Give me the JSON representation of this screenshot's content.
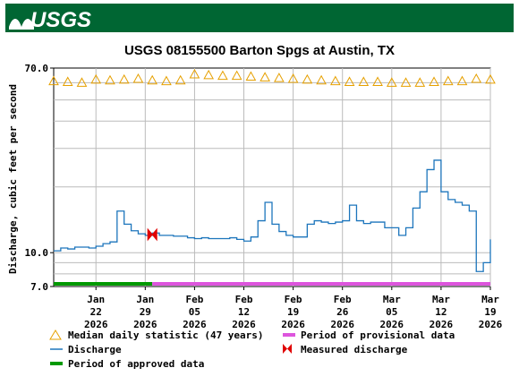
{
  "brand": {
    "logo_text": "USGS",
    "bar_color": "#006633"
  },
  "chart_data": {
    "type": "line",
    "title": "USGS 08155500 Barton Spgs at Austin, TX",
    "ylabel": "Discharge, cubic feet per second",
    "ylim": [
      7.0,
      70.0
    ],
    "y_scale": "log",
    "y_tick_labels": [
      "70.0",
      "10.0",
      "7.0"
    ],
    "x_tick_labels": [
      {
        "month": "Jan",
        "day": "22",
        "year": "2026"
      },
      {
        "month": "Jan",
        "day": "29",
        "year": "2026"
      },
      {
        "month": "Feb",
        "day": "05",
        "year": "2026"
      },
      {
        "month": "Feb",
        "day": "12",
        "year": "2026"
      },
      {
        "month": "Feb",
        "day": "19",
        "year": "2026"
      },
      {
        "month": "Feb",
        "day": "26",
        "year": "2026"
      },
      {
        "month": "Mar",
        "day": "05",
        "year": "2026"
      },
      {
        "month": "Mar",
        "day": "12",
        "year": "2026"
      },
      {
        "month": "Mar",
        "day": "19",
        "year": "2026"
      }
    ],
    "xlim": [
      "2026-01-16",
      "2026-03-19"
    ],
    "series": [
      {
        "name": "Discharge",
        "color": "#1c75bc",
        "points": [
          [
            "2026-01-16",
            10.2
          ],
          [
            "2026-01-17",
            10.5
          ],
          [
            "2026-01-18",
            10.4
          ],
          [
            "2026-01-19",
            10.6
          ],
          [
            "2026-01-20",
            10.6
          ],
          [
            "2026-01-21",
            10.5
          ],
          [
            "2026-01-22",
            10.7
          ],
          [
            "2026-01-23",
            11.0
          ],
          [
            "2026-01-24",
            11.2
          ],
          [
            "2026-01-25",
            15.5
          ],
          [
            "2026-01-26",
            13.5
          ],
          [
            "2026-01-27",
            12.6
          ],
          [
            "2026-01-28",
            12.2
          ],
          [
            "2026-01-29",
            12.0
          ],
          [
            "2026-01-30",
            12.3
          ],
          [
            "2026-01-31",
            12.0
          ],
          [
            "2026-02-01",
            12.0
          ],
          [
            "2026-02-02",
            11.9
          ],
          [
            "2026-02-03",
            11.9
          ],
          [
            "2026-02-04",
            11.7
          ],
          [
            "2026-02-05",
            11.6
          ],
          [
            "2026-02-06",
            11.7
          ],
          [
            "2026-02-07",
            11.6
          ],
          [
            "2026-02-08",
            11.6
          ],
          [
            "2026-02-09",
            11.6
          ],
          [
            "2026-02-10",
            11.7
          ],
          [
            "2026-02-11",
            11.5
          ],
          [
            "2026-02-12",
            11.3
          ],
          [
            "2026-02-13",
            11.8
          ],
          [
            "2026-02-14",
            14.0
          ],
          [
            "2026-02-15",
            17.0
          ],
          [
            "2026-02-16",
            13.5
          ],
          [
            "2026-02-17",
            12.5
          ],
          [
            "2026-02-18",
            12.0
          ],
          [
            "2026-02-19",
            11.8
          ],
          [
            "2026-02-20",
            11.8
          ],
          [
            "2026-02-21",
            13.5
          ],
          [
            "2026-02-22",
            14.0
          ],
          [
            "2026-02-23",
            13.8
          ],
          [
            "2026-02-24",
            13.6
          ],
          [
            "2026-02-25",
            13.8
          ],
          [
            "2026-02-26",
            14.0
          ],
          [
            "2026-02-27",
            16.5
          ],
          [
            "2026-02-28",
            14.0
          ],
          [
            "2026-03-01",
            13.6
          ],
          [
            "2026-03-02",
            13.8
          ],
          [
            "2026-03-03",
            13.8
          ],
          [
            "2026-03-04",
            13.0
          ],
          [
            "2026-03-05",
            13.0
          ],
          [
            "2026-03-06",
            12.0
          ],
          [
            "2026-03-07",
            13.0
          ],
          [
            "2026-03-08",
            16.0
          ],
          [
            "2026-03-09",
            19.0
          ],
          [
            "2026-03-10",
            24.0
          ],
          [
            "2026-03-11",
            26.5
          ],
          [
            "2026-03-12",
            19.0
          ],
          [
            "2026-03-13",
            17.5
          ],
          [
            "2026-03-14",
            17.0
          ],
          [
            "2026-03-15",
            16.5
          ],
          [
            "2026-03-16",
            15.5
          ],
          [
            "2026-03-17",
            8.2
          ],
          [
            "2026-03-18",
            9.0
          ],
          [
            "2026-03-19",
            11.5
          ]
        ]
      },
      {
        "name": "Median daily statistic (47 years)",
        "color": "#e6a000",
        "points": [
          [
            "2026-01-16",
            61.0
          ],
          [
            "2026-01-18",
            60.5
          ],
          [
            "2026-01-20",
            60.0
          ],
          [
            "2026-01-22",
            62.0
          ],
          [
            "2026-01-24",
            61.5
          ],
          [
            "2026-01-26",
            62.0
          ],
          [
            "2026-01-28",
            62.5
          ],
          [
            "2026-01-30",
            61.5
          ],
          [
            "2026-02-01",
            61.0
          ],
          [
            "2026-02-03",
            61.5
          ],
          [
            "2026-02-05",
            65.5
          ],
          [
            "2026-02-07",
            65.0
          ],
          [
            "2026-02-09",
            64.5
          ],
          [
            "2026-02-11",
            64.5
          ],
          [
            "2026-02-13",
            64.0
          ],
          [
            "2026-02-15",
            63.5
          ],
          [
            "2026-02-17",
            63.0
          ],
          [
            "2026-02-19",
            62.5
          ],
          [
            "2026-02-21",
            62.0
          ],
          [
            "2026-02-23",
            61.5
          ],
          [
            "2026-02-25",
            61.0
          ],
          [
            "2026-02-27",
            60.5
          ],
          [
            "2026-03-01",
            60.5
          ],
          [
            "2026-03-03",
            60.5
          ],
          [
            "2026-03-05",
            60.0
          ],
          [
            "2026-03-07",
            60.0
          ],
          [
            "2026-03-09",
            60.0
          ],
          [
            "2026-03-11",
            60.5
          ],
          [
            "2026-03-13",
            61.0
          ],
          [
            "2026-03-15",
            61.0
          ],
          [
            "2026-03-17",
            62.5
          ],
          [
            "2026-03-19",
            62.0
          ]
        ]
      },
      {
        "name": "Measured discharge",
        "color": "#e00000",
        "points": [
          [
            "2026-01-30",
            12.1
          ]
        ]
      }
    ],
    "periods": [
      {
        "name": "Period of approved data",
        "color": "#009900",
        "start": "2026-01-16",
        "end": "2026-01-30"
      },
      {
        "name": "Period of provisional data",
        "color": "#dd55dd",
        "start": "2026-01-30",
        "end": "2026-03-19"
      }
    ],
    "legend": [
      {
        "symbol": "triangle",
        "color": "#e6a000",
        "label": "Median daily statistic (47 years)"
      },
      {
        "symbol": "bar",
        "color": "#dd55dd",
        "label": "Period of provisional data"
      },
      {
        "symbol": "line",
        "color": "#1c75bc",
        "label": "Discharge"
      },
      {
        "symbol": "bowtie",
        "color": "#e00000",
        "label": "Measured discharge"
      },
      {
        "symbol": "bar",
        "color": "#009900",
        "label": "Period of approved data"
      }
    ]
  }
}
